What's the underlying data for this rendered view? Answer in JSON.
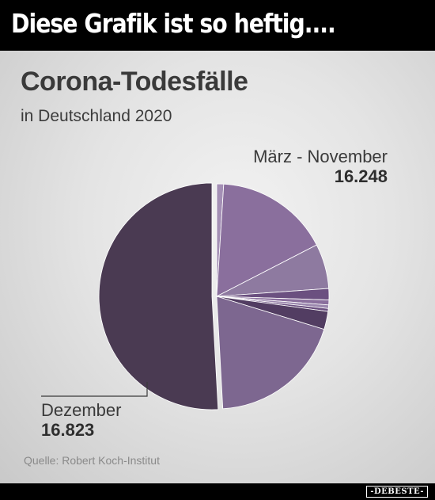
{
  "banner": {
    "text": "Diese Grafik ist so heftig...."
  },
  "chart_data": {
    "type": "pie",
    "title": "Corona-Todesfälle",
    "subtitle": "in Deutschland 2020",
    "labels": [
      {
        "name": "März - November",
        "value": "16.248"
      },
      {
        "name": "Dezember",
        "value": "16.823"
      }
    ],
    "groups": [
      {
        "name": "März - November",
        "total": 16248,
        "slice_values": [
          329,
          5440,
          2130,
          537,
          235,
          167,
          138,
          857,
          6415
        ]
      },
      {
        "name": "Dezember",
        "total": 16823,
        "slice_values": [
          16823
        ]
      }
    ],
    "source": "Quelle: Robert Koch-Institut",
    "colors": {
      "maerz_november": [
        "#a48fb5",
        "#8a6f9d",
        "#8e7aa0",
        "#6b5080",
        "#8a6f9d",
        "#9c88ae",
        "#6b5080",
        "#523d62",
        "#7d6790"
      ],
      "dezember": "#4a3a52",
      "separator": "#ffffff",
      "background": "#e4e4e4"
    },
    "legend": "none",
    "grid": false
  },
  "watermark": {
    "text": "-DEBESTE-"
  }
}
